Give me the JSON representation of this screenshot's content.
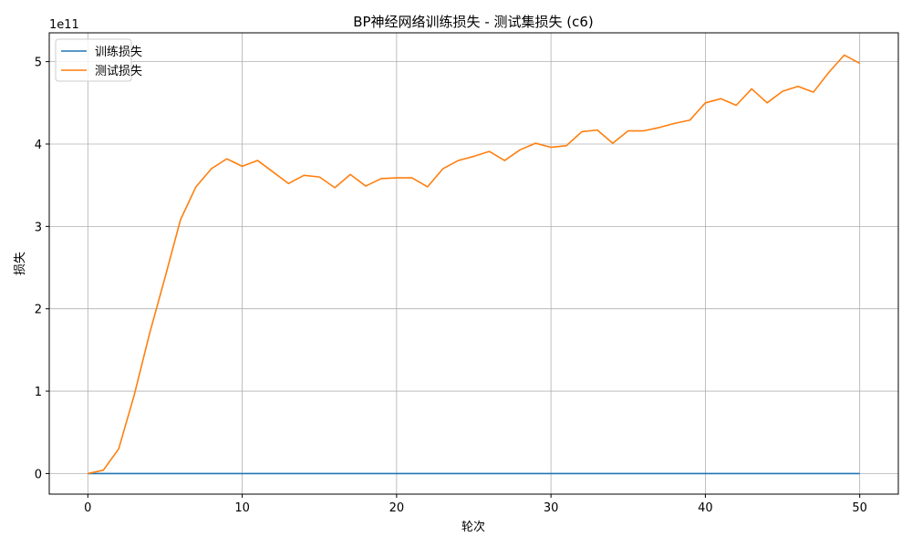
{
  "chart_data": {
    "type": "line",
    "title": "BP神经网络训练损失 - 测试集损失 (c6)",
    "xlabel": "轮次",
    "ylabel": "损失",
    "offset_text": "1e11",
    "xlim": [
      -2.5,
      52.5
    ],
    "ylim": [
      -0.25,
      5.35
    ],
    "x_ticks": [
      0,
      10,
      20,
      30,
      40,
      50
    ],
    "y_ticks": [
      0,
      1,
      2,
      3,
      4,
      5
    ],
    "grid": true,
    "legend_position": "top-left",
    "x": [
      0,
      1,
      2,
      3,
      4,
      5,
      6,
      7,
      8,
      9,
      10,
      11,
      12,
      13,
      14,
      15,
      16,
      17,
      18,
      19,
      20,
      21,
      22,
      23,
      24,
      25,
      26,
      27,
      28,
      29,
      30,
      31,
      32,
      33,
      34,
      35,
      36,
      37,
      38,
      39,
      40,
      41,
      42,
      43,
      44,
      45,
      46,
      47,
      48,
      49,
      50
    ],
    "series": [
      {
        "name": "训练损失",
        "color": "#1f77b4",
        "values": [
          0,
          0,
          0,
          0,
          0,
          0,
          0,
          0,
          0,
          0,
          0,
          0,
          0,
          0,
          0,
          0,
          0,
          0,
          0,
          0,
          0,
          0,
          0,
          0,
          0,
          0,
          0,
          0,
          0,
          0,
          0,
          0,
          0,
          0,
          0,
          0,
          0,
          0,
          0,
          0,
          0,
          0,
          0,
          0,
          0,
          0,
          0,
          0,
          0,
          0,
          0
        ]
      },
      {
        "name": "测试损失",
        "color": "#ff7f0e",
        "values": [
          0.0,
          0.04,
          0.3,
          0.95,
          1.7,
          2.38,
          3.08,
          3.48,
          3.7,
          3.82,
          3.73,
          3.8,
          3.66,
          3.52,
          3.62,
          3.6,
          3.47,
          3.63,
          3.49,
          3.58,
          3.59,
          3.59,
          3.48,
          3.7,
          3.8,
          3.85,
          3.91,
          3.8,
          3.93,
          4.01,
          3.96,
          3.98,
          4.15,
          4.17,
          4.01,
          4.16,
          4.16,
          4.2,
          4.25,
          4.29,
          4.5,
          4.55,
          4.47,
          4.67,
          4.5,
          4.64,
          4.7,
          4.63,
          4.87,
          5.08,
          4.98
        ]
      }
    ]
  }
}
